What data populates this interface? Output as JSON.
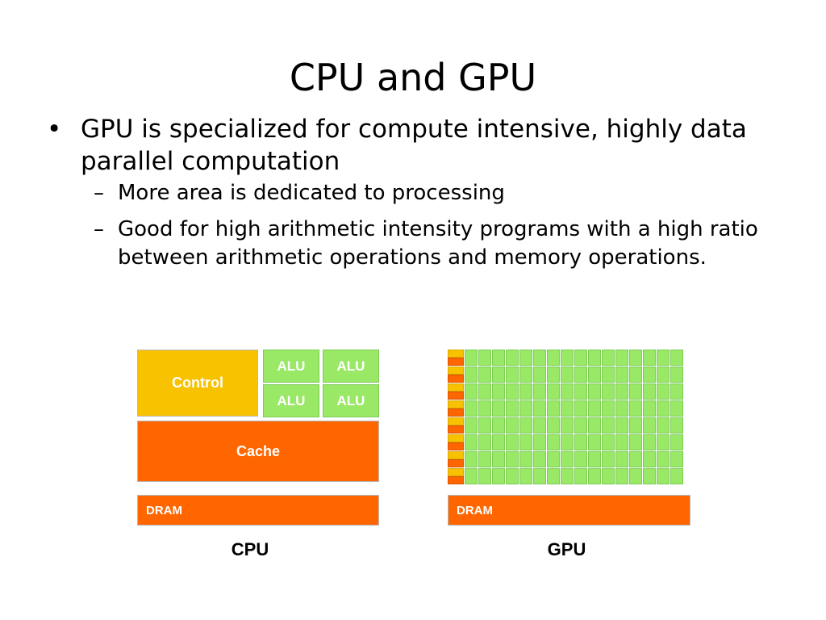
{
  "slide": {
    "title": "CPU and GPU",
    "bullet_mark": "•",
    "dash_mark": "–",
    "bullet1": "GPU is specialized for compute intensive, highly data parallel computation",
    "sub1": "More area is dedicated to processing",
    "sub2": "Good for high arithmetic intensity programs with a high ratio between arithmetic operations and memory operations."
  },
  "diagram": {
    "cpu": {
      "control_label": "Control",
      "alu_label": "ALU",
      "cache_label": "Cache",
      "dram_label": "DRAM",
      "caption": "CPU"
    },
    "gpu": {
      "dram_label": "DRAM",
      "caption": "GPU"
    },
    "colors": {
      "control": "#f9c200",
      "alu": "#99e866",
      "cache": "#ff6600",
      "dram": "#ff6600"
    }
  }
}
